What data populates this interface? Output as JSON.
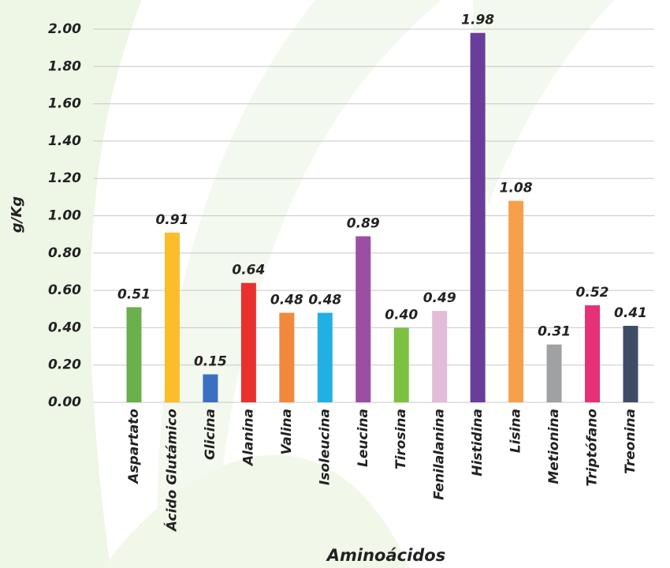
{
  "chart_data": {
    "type": "bar",
    "x_label": "Aminoácidos",
    "y_label": "g/Kg",
    "categories": [
      "Aspartato",
      "Ácido Glutámico",
      "Glicina",
      "Alanina",
      "Valina",
      "Isoleucina",
      "Leucina",
      "Tirosina",
      "Fenilalanina",
      "Histidina",
      "Lisina",
      "Metionina",
      "Triptófano",
      "Treonina"
    ],
    "values": [
      0.51,
      0.91,
      0.15,
      0.64,
      0.48,
      0.48,
      0.89,
      0.4,
      0.49,
      1.98,
      1.08,
      0.31,
      0.52,
      0.41
    ],
    "value_labels": [
      "0.51",
      "0.91",
      "0.15",
      "0.64",
      "0.48",
      "0.48",
      "0.89",
      "0.40",
      "0.49",
      "1.98",
      "1.08",
      "0.31",
      "0.52",
      "0.41"
    ],
    "colors": [
      "#6ab04c",
      "#fbbd2a",
      "#3b6fc2",
      "#e8312d",
      "#f0893b",
      "#22b0e4",
      "#9c4fa2",
      "#7cc142",
      "#e3bcd8",
      "#6a3d9a",
      "#f7a04c",
      "#9fa1a3",
      "#e6307a",
      "#3e4c66"
    ],
    "ylim": [
      0,
      2
    ],
    "yticks": [
      {
        "value": 0,
        "label": "0.00"
      },
      {
        "value": 0.2,
        "label": "0.20"
      },
      {
        "value": 0.4,
        "label": "0.40"
      },
      {
        "value": 0.6,
        "label": "0.60"
      },
      {
        "value": 0.8,
        "label": "0.80"
      },
      {
        "value": 1,
        "label": "1.00"
      },
      {
        "value": 1.2,
        "label": "1.20"
      },
      {
        "value": 1.4,
        "label": "1.40"
      },
      {
        "value": 1.6,
        "label": "1.60"
      },
      {
        "value": 1.8,
        "label": "1.80"
      },
      {
        "value": 2,
        "label": "2.00"
      }
    ],
    "grid": true
  }
}
